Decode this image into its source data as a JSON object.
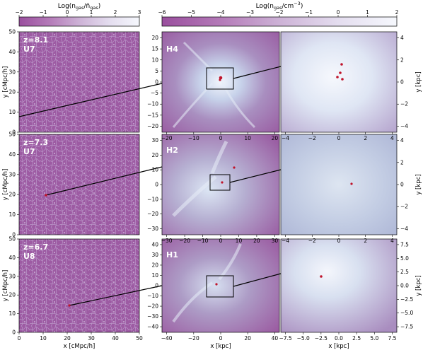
{
  "colors": {
    "cmap": [
      "#9a4f9e",
      "#b47ab8",
      "#cdb2d6",
      "#e4ddef",
      "#f6f8fd"
    ],
    "marker": "#c0142b",
    "line": "#000000",
    "label": "#ffffff"
  },
  "colorbars": [
    {
      "label_main": "Log(n",
      "label_sub": "gas",
      "label_mid": "/n̄",
      "label_sub2": "gas",
      "label_end": ")",
      "ticks": [
        "−2",
        "−1",
        "0",
        "1",
        "2",
        "3"
      ]
    },
    {
      "label_main": "Log(n",
      "label_sub": "gas",
      "label_mid": "/cm",
      "label_sup": "−3",
      "label_end": ")",
      "ticks": [
        "−6",
        "−5",
        "−4",
        "−3",
        "−2",
        "−1",
        "0",
        "1",
        "2"
      ]
    }
  ],
  "rows": [
    {
      "left": {
        "label1": "z=8.1",
        "label2": "U7",
        "yticks": [
          "0",
          "10",
          "20",
          "30",
          "40",
          "50"
        ],
        "xticks": []
      },
      "mid": {
        "label": "H4",
        "yticks": [
          "−20",
          "−15",
          "−10",
          "−5",
          "0",
          "5",
          "10",
          "15",
          "20"
        ],
        "xticks": [
          "−20",
          "−10",
          "0",
          "10",
          "20"
        ]
      },
      "right": {
        "yticks": [
          "4",
          "2",
          "0",
          "−2",
          "−4"
        ],
        "xticks": [
          "−4",
          "−2",
          "0",
          "2",
          "4"
        ]
      }
    },
    {
      "left": {
        "label1": "z=7.3",
        "label2": "U7",
        "yticks": [
          "0",
          "10",
          "20",
          "30",
          "40",
          "50"
        ],
        "xticks": []
      },
      "mid": {
        "label": "H2",
        "yticks": [
          "−30",
          "−20",
          "−10",
          "0",
          "10",
          "20",
          "30"
        ],
        "xticks": [
          "−30",
          "−20",
          "−10",
          "0",
          "10",
          "20",
          "30"
        ]
      },
      "right": {
        "yticks": [
          "4",
          "2",
          "0",
          "−2",
          "−4"
        ],
        "xticks": [
          "−4",
          "−2",
          "0",
          "2",
          "4"
        ]
      }
    },
    {
      "left": {
        "label1": "z=6.7",
        "label2": "U8",
        "yticks": [
          "0",
          "10",
          "20",
          "30",
          "40",
          "50"
        ],
        "xticks": [
          "0",
          "10",
          "20",
          "30",
          "40",
          "50"
        ]
      },
      "mid": {
        "label": "H1",
        "yticks": [
          "−40",
          "−30",
          "−20",
          "−10",
          "0",
          "10",
          "20",
          "30",
          "40"
        ],
        "xticks": [
          "−40",
          "−20",
          "0",
          "20",
          "40"
        ]
      },
      "right": {
        "yticks": [
          "7.5",
          "5.0",
          "2.5",
          "0.0",
          "−2.5",
          "−5.0",
          "−7.5"
        ],
        "xticks": [
          "−7.5",
          "−5.0",
          "−2.5",
          "0.0",
          "2.5",
          "5.0",
          "7.5"
        ]
      }
    }
  ],
  "axis_labels": {
    "left_y": "y [cMpc/h]",
    "left_x": "x [cMpc/h]",
    "mid_x": "x [kpc]",
    "right_x": "x [kpc]",
    "right_y": "y [kpc]"
  }
}
